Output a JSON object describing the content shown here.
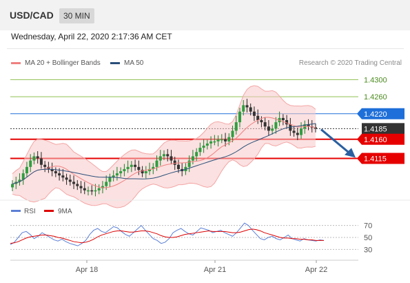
{
  "header": {
    "pair": "USD/CAD",
    "timeframe": "30 MIN"
  },
  "timestamp": "Wednesday, April 22, 2020 2:17:36 AM CET",
  "legend": {
    "ma20": "MA 20 + Bollinger Bands",
    "ma50": "MA 50",
    "ma20_color": "#f08080",
    "ma50_color": "#2a4f7a"
  },
  "research": "Research © 2020 Trading Central",
  "rsi_legend": {
    "rsi": "RSI",
    "ma9": "9MA",
    "rsi_color": "#5b7fd6",
    "ma9_color": "#dd0000"
  },
  "chart_data": [
    {
      "type": "line",
      "title": "",
      "price_levels": [
        {
          "value": "1.4300",
          "kind": "resistance-green",
          "color": "#8fbf50"
        },
        {
          "value": "1.4260",
          "kind": "resistance-green",
          "color": "#8fbf50"
        },
        {
          "value": "1.4220",
          "kind": "pivot",
          "color": "#1e6fd9"
        },
        {
          "value": "1.4185",
          "kind": "last-price",
          "color": "#333333"
        },
        {
          "value": "1.4160",
          "kind": "support",
          "color": "#e60000"
        },
        {
          "value": "1.4115",
          "kind": "target",
          "color": "#e60000"
        }
      ],
      "x_tick_labels": [
        "Apr 18",
        "Apr 21",
        "Apr 22"
      ],
      "series": [
        {
          "name": "MA 20 + Bollinger Bands",
          "color": "#f08080"
        },
        {
          "name": "MA 50",
          "color": "#2a4f7a"
        }
      ],
      "close": [
        1.4055,
        1.406,
        1.4065,
        1.408,
        1.4095,
        1.411,
        1.412,
        1.4115,
        1.41,
        1.4095,
        1.409,
        1.4085,
        1.408,
        1.4075,
        1.407,
        1.4065,
        1.406,
        1.4055,
        1.405,
        1.4045,
        1.404,
        1.404,
        1.4038,
        1.404,
        1.4045,
        1.405,
        1.406,
        1.407,
        1.4075,
        1.408,
        1.4085,
        1.409,
        1.4095,
        1.41,
        1.4095,
        1.4088,
        1.408,
        1.4085,
        1.409,
        1.4095,
        1.411,
        1.412,
        1.4125,
        1.412,
        1.411,
        1.41,
        1.409,
        1.4085,
        1.4095,
        1.411,
        1.412,
        1.413,
        1.414,
        1.4145,
        1.415,
        1.4155,
        1.4155,
        1.416,
        1.416,
        1.4155,
        1.4165,
        1.418,
        1.42,
        1.4225,
        1.424,
        1.4235,
        1.4225,
        1.4215,
        1.4205,
        1.42,
        1.419,
        1.418,
        1.4185,
        1.42,
        1.421,
        1.4205,
        1.4195,
        1.418,
        1.4175,
        1.417,
        1.4185,
        1.4195,
        1.419,
        1.4188,
        1.4185
      ]
    },
    {
      "type": "line",
      "title": "RSI",
      "y_tick_labels": [
        "70",
        "50",
        "30"
      ],
      "series": [
        {
          "name": "RSI",
          "color": "#5b7fd6",
          "values": [
            38,
            42,
            50,
            58,
            60,
            55,
            48,
            52,
            58,
            54,
            50,
            46,
            44,
            47,
            43,
            40,
            38,
            36,
            40,
            45,
            55,
            62,
            65,
            60,
            58,
            63,
            68,
            66,
            60,
            55,
            52,
            58,
            64,
            70,
            62,
            55,
            48,
            45,
            40,
            42,
            48,
            58,
            62,
            65,
            60,
            56,
            54,
            60,
            66,
            64,
            62,
            58,
            60,
            62,
            58,
            55,
            52,
            58,
            66,
            74,
            70,
            62,
            55,
            48,
            46,
            50,
            52,
            48,
            46,
            50,
            54,
            48,
            46,
            44,
            48,
            46,
            45,
            44,
            46,
            45
          ]
        },
        {
          "name": "9MA",
          "color": "#dd0000",
          "values": [
            40,
            41,
            43,
            46,
            49,
            51,
            52,
            53,
            54,
            54,
            53,
            52,
            50,
            49,
            47,
            45,
            43,
            42,
            41,
            42,
            44,
            47,
            51,
            54,
            56,
            58,
            60,
            61,
            61,
            60,
            59,
            59,
            60,
            61,
            61,
            60,
            58,
            56,
            53,
            51,
            50,
            50,
            51,
            53,
            55,
            56,
            57,
            58,
            59,
            60,
            61,
            60,
            60,
            60,
            60,
            59,
            58,
            58,
            59,
            61,
            63,
            64,
            63,
            61,
            58,
            56,
            54,
            52,
            50,
            49,
            49,
            48,
            48,
            47,
            47,
            46,
            46,
            45,
            45,
            45
          ]
        }
      ]
    }
  ]
}
